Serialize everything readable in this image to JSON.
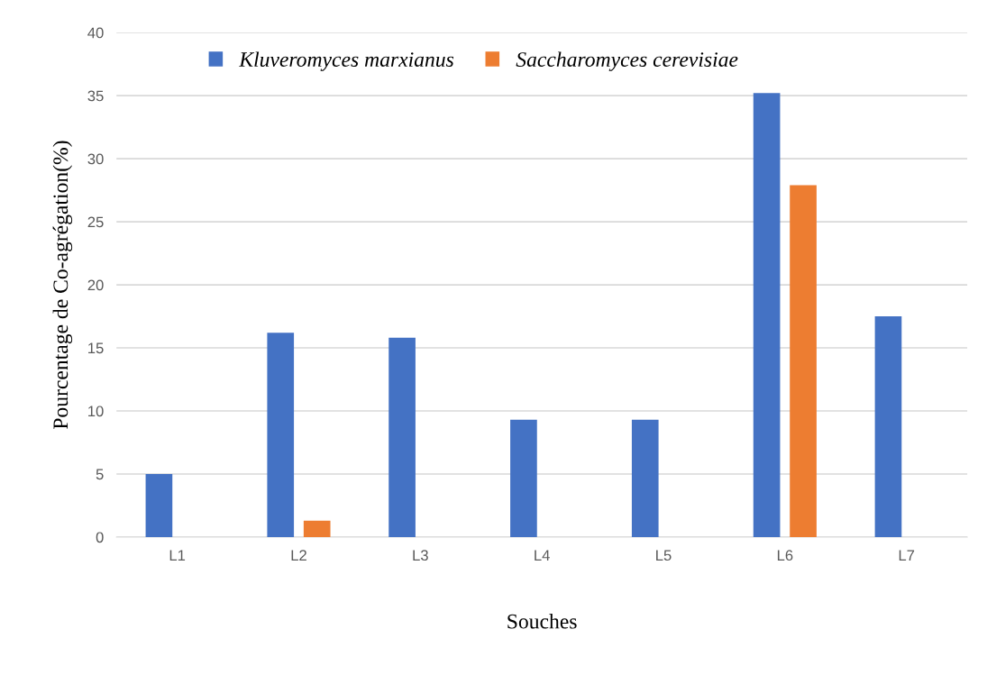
{
  "chart_data": {
    "type": "bar",
    "xlabel": "Souches",
    "ylabel": "Pourcentage de Co-agrégation(%)",
    "categories": [
      "L1",
      "L2",
      "L3",
      "L4",
      "L5",
      "L6",
      "L7"
    ],
    "series": [
      {
        "name": "Kluveromyces marxianus",
        "color": "#4472c4",
        "values": [
          5.0,
          16.2,
          15.8,
          9.3,
          9.3,
          35.2,
          17.5
        ]
      },
      {
        "name": "Saccharomyces cerevisiae",
        "color": "#ed7d31",
        "values": [
          0,
          1.3,
          0,
          0,
          0,
          27.9,
          0
        ]
      }
    ],
    "ylim": [
      0,
      40
    ],
    "yticks": [
      0,
      5,
      10,
      15,
      20,
      25,
      30,
      35,
      40
    ],
    "grid": "y",
    "legend": "top"
  }
}
